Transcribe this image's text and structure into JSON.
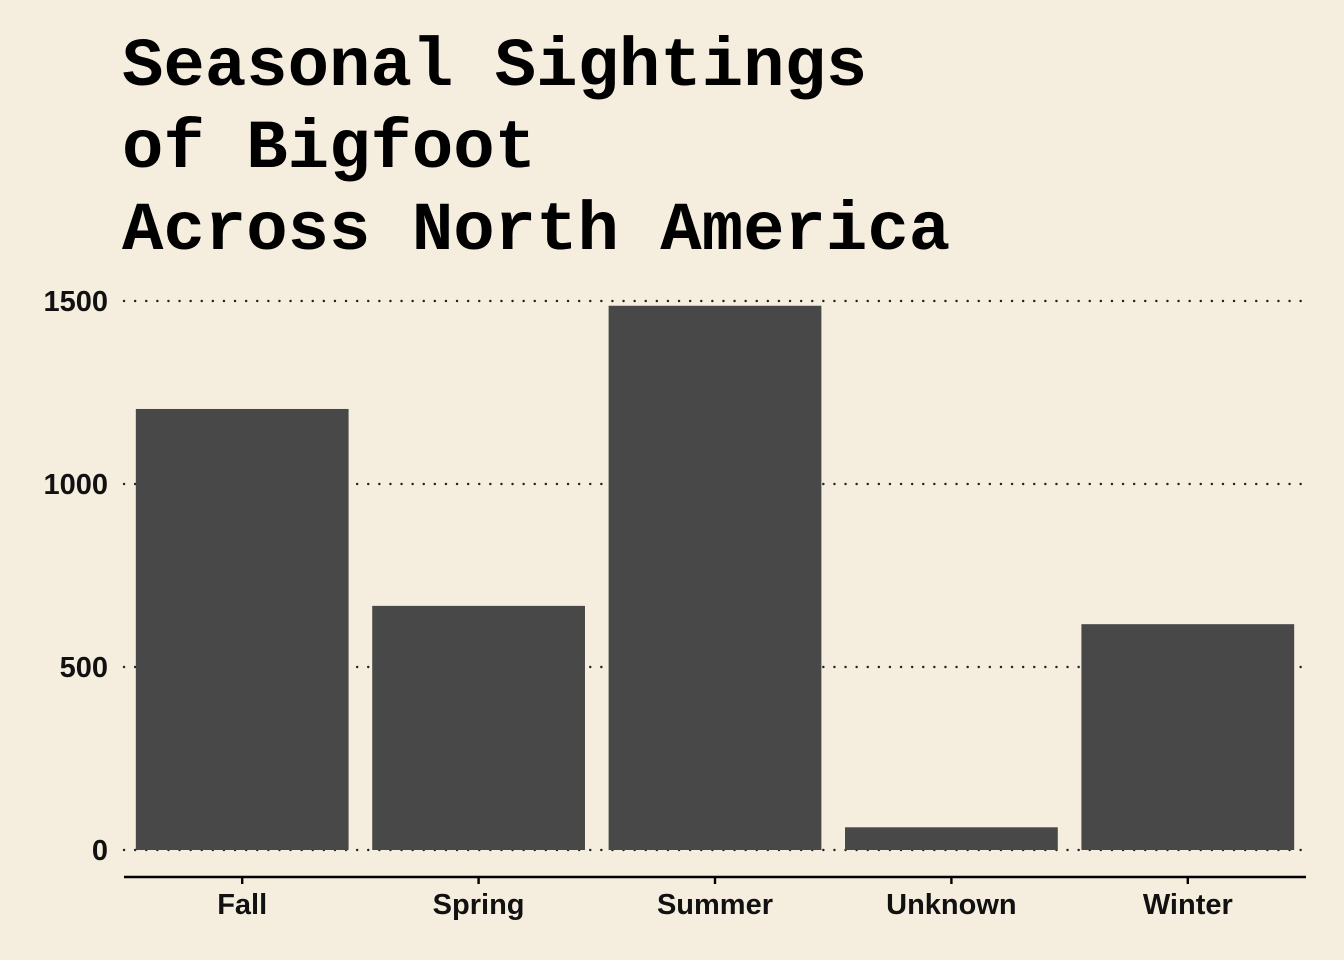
{
  "chart_data": {
    "type": "bar",
    "title": "Seasonal Sightings\nof Bigfoot\nAcross North America",
    "categories": [
      "Fall",
      "Spring",
      "Summer",
      "Unknown",
      "Winter"
    ],
    "values": [
      1205,
      667,
      1487,
      62,
      617
    ],
    "xlabel": "",
    "ylabel": "",
    "ylim": [
      0,
      1500
    ],
    "yticks": [
      0,
      500,
      1000,
      1500
    ],
    "grid": "horizontal dotted",
    "legend": "none",
    "colors": {
      "bar": "#484848",
      "background": "#f5eede",
      "grid": "#222222",
      "axis": "#000000",
      "text": "#111111"
    }
  }
}
